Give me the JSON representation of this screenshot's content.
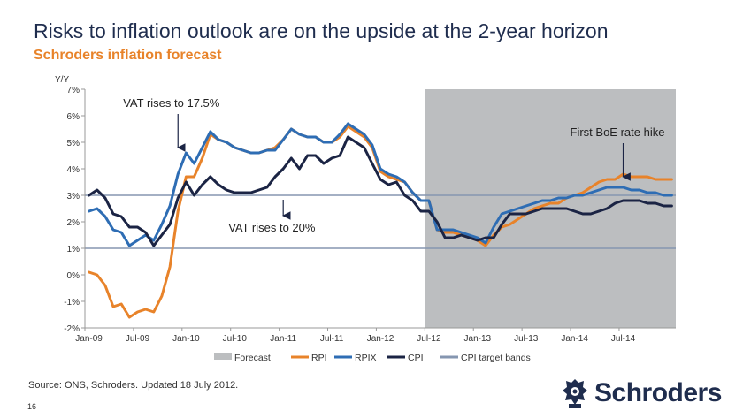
{
  "slide": {
    "title": "Risks to inflation outlook are on the upside at the 2-year horizon",
    "subtitle": "Schroders inflation forecast",
    "source": "Source: ONS, Schroders. Updated 18 July 2012.",
    "page_number": "16",
    "logo_text": "Schroders"
  },
  "colors": {
    "forecast_band": "#bcbec0",
    "rpi": "#e8832a",
    "rpix": "#2e6db4",
    "cpi": "#1b2444",
    "target_bands": "#8596b0",
    "axis": "#999999"
  },
  "chart_data": {
    "type": "line",
    "title": "Schroders inflation forecast",
    "ylabel": "Y/Y",
    "xlabel": "",
    "ylim": [
      -2,
      7
    ],
    "x_start": "2009-01",
    "x_count": 73,
    "xticks": [
      {
        "i": 0,
        "label": "Jan-09"
      },
      {
        "i": 6,
        "label": "Jul-09"
      },
      {
        "i": 12,
        "label": "Jan-10"
      },
      {
        "i": 18,
        "label": "Jul-10"
      },
      {
        "i": 24,
        "label": "Jan-11"
      },
      {
        "i": 30,
        "label": "Jul-11"
      },
      {
        "i": 36,
        "label": "Jan-12"
      },
      {
        "i": 42,
        "label": "Jul-12"
      },
      {
        "i": 48,
        "label": "Jan-13"
      },
      {
        "i": 54,
        "label": "Jul-13"
      },
      {
        "i": 60,
        "label": "Jan-14"
      },
      {
        "i": 66,
        "label": "Jul-14"
      }
    ],
    "yticks": [
      {
        "v": 7,
        "label": "7%"
      },
      {
        "v": 6,
        "label": "6%"
      },
      {
        "v": 5,
        "label": "5%"
      },
      {
        "v": 4,
        "label": "4%"
      },
      {
        "v": 3,
        "label": "3%"
      },
      {
        "v": 2,
        "label": "2%"
      },
      {
        "v": 1,
        "label": "1%"
      },
      {
        "v": 0,
        "label": "0%"
      },
      {
        "v": -1,
        "label": "-1%"
      },
      {
        "v": -2,
        "label": "-2%"
      }
    ],
    "forecast_start_index": 42,
    "target_bands": [
      1,
      3
    ],
    "series": [
      {
        "name": "RPI",
        "key": "rpi",
        "width": 3,
        "values": [
          0.1,
          0.0,
          -0.4,
          -1.2,
          -1.1,
          -1.6,
          -1.4,
          -1.3,
          -1.4,
          -0.8,
          0.3,
          2.4,
          3.7,
          3.7,
          4.4,
          5.3,
          5.1,
          5.0,
          4.8,
          4.7,
          4.6,
          4.6,
          4.7,
          4.8,
          5.1,
          5.5,
          5.3,
          5.2,
          5.2,
          5.0,
          5.0,
          5.2,
          5.6,
          5.4,
          5.2,
          4.8,
          3.9,
          3.7,
          3.6,
          3.5,
          3.1,
          2.8,
          2.8,
          1.7,
          1.6,
          1.6,
          1.5,
          1.4,
          1.3,
          1.1,
          1.5,
          1.8,
          1.9,
          2.1,
          2.3,
          2.5,
          2.6,
          2.7,
          2.7,
          2.9,
          3.0,
          3.1,
          3.3,
          3.5,
          3.6,
          3.6,
          3.8,
          3.7,
          3.7,
          3.7,
          3.6,
          3.6,
          3.6
        ]
      },
      {
        "name": "RPIX",
        "key": "rpix",
        "width": 3,
        "values": [
          2.4,
          2.5,
          2.2,
          1.7,
          1.6,
          1.1,
          1.3,
          1.5,
          1.3,
          1.9,
          2.6,
          3.8,
          4.6,
          4.2,
          4.8,
          5.4,
          5.1,
          5.0,
          4.8,
          4.7,
          4.6,
          4.6,
          4.7,
          4.7,
          5.1,
          5.5,
          5.3,
          5.2,
          5.2,
          5.0,
          5.0,
          5.3,
          5.7,
          5.5,
          5.3,
          4.9,
          4.0,
          3.8,
          3.7,
          3.5,
          3.1,
          2.8,
          2.8,
          1.7,
          1.7,
          1.7,
          1.6,
          1.5,
          1.4,
          1.2,
          1.8,
          2.3,
          2.4,
          2.5,
          2.6,
          2.7,
          2.8,
          2.8,
          2.9,
          2.9,
          3.0,
          3.0,
          3.1,
          3.2,
          3.3,
          3.3,
          3.3,
          3.2,
          3.2,
          3.1,
          3.1,
          3.0,
          3.0
        ]
      },
      {
        "name": "CPI",
        "key": "cpi",
        "width": 3,
        "values": [
          3.0,
          3.2,
          2.9,
          2.3,
          2.2,
          1.8,
          1.8,
          1.6,
          1.1,
          1.5,
          1.9,
          2.9,
          3.5,
          3.0,
          3.4,
          3.7,
          3.4,
          3.2,
          3.1,
          3.1,
          3.1,
          3.2,
          3.3,
          3.7,
          4.0,
          4.4,
          4.0,
          4.5,
          4.5,
          4.2,
          4.4,
          4.5,
          5.2,
          5.0,
          4.8,
          4.2,
          3.6,
          3.4,
          3.5,
          3.0,
          2.8,
          2.4,
          2.4,
          2.0,
          1.4,
          1.4,
          1.5,
          1.4,
          1.3,
          1.4,
          1.4,
          1.9,
          2.3,
          2.3,
          2.3,
          2.4,
          2.5,
          2.5,
          2.5,
          2.5,
          2.4,
          2.3,
          2.3,
          2.4,
          2.5,
          2.7,
          2.8,
          2.8,
          2.8,
          2.7,
          2.7,
          2.6,
          2.6
        ]
      }
    ],
    "legend": {
      "position": "bottom-center",
      "entries": [
        {
          "label": "Forecast",
          "key": "forecast_band",
          "kind": "patch"
        },
        {
          "label": "RPI",
          "key": "rpi",
          "kind": "line"
        },
        {
          "label": "RPIX",
          "key": "rpix",
          "kind": "line"
        },
        {
          "label": "CPI",
          "key": "cpi",
          "kind": "line"
        },
        {
          "label": "CPI target bands",
          "key": "target_bands",
          "kind": "line"
        }
      ]
    },
    "annotations": [
      {
        "text": "VAT rises to 17.5%",
        "point_index": 11,
        "point_value": 4.6,
        "placement": "above"
      },
      {
        "text": "VAT rises to 20%",
        "point_index": 24,
        "point_value": 3.1,
        "placement": "below"
      },
      {
        "text": "First BoE rate hike",
        "point_index": 66,
        "point_value": 3.5,
        "placement": "above"
      }
    ]
  }
}
